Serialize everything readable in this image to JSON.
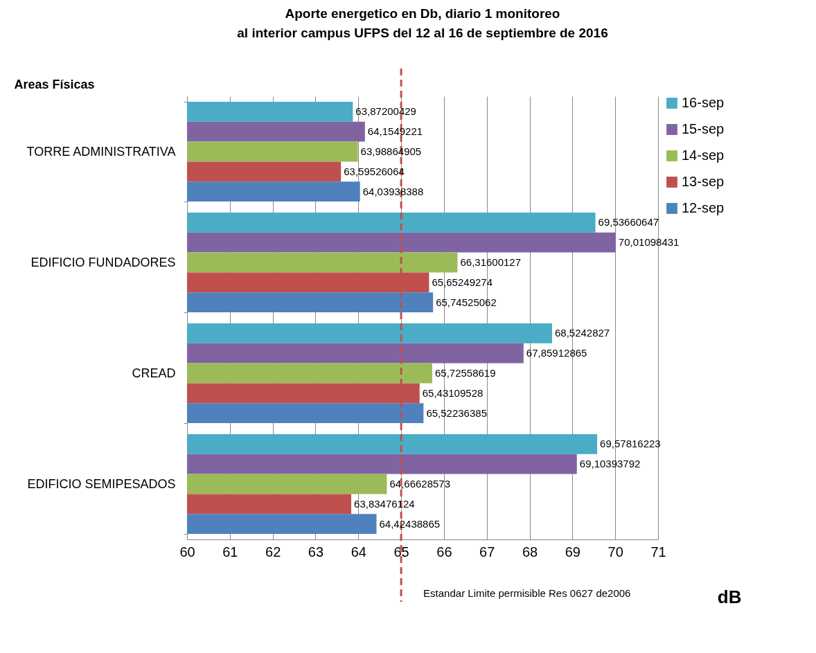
{
  "chart_data": {
    "type": "bar",
    "orientation": "horizontal",
    "title": [
      "Aporte energetico en Db,  diario 1 monitoreo",
      "al interior campus UFPS del 12 al 16 de septiembre de 2016"
    ],
    "ylabel": "Areas Físicas",
    "xlabel": "dB",
    "categories": [
      "TORRE ADMINISTRATIVA",
      "EDIFICIO  FUNDADORES",
      "CREAD",
      "EDIFICIO SEMIPESADOS"
    ],
    "series": [
      {
        "name": "16-sep",
        "color": "#4bacc6",
        "values": [
          63.87200429,
          69.53660647,
          68.5242827,
          69.57816223
        ],
        "value_labels": [
          "63,87200429",
          "69,53660647",
          "68,5242827",
          "69,57816223"
        ]
      },
      {
        "name": "15-sep",
        "color": "#8064a2",
        "values": [
          64.1549221,
          70.01098431,
          67.85912865,
          69.10393792
        ],
        "value_labels": [
          "64,1549221",
          "70,01098431",
          "67,85912865",
          "69,10393792"
        ]
      },
      {
        "name": "14-sep",
        "color": "#9bbb59",
        "values": [
          63.98864905,
          66.31600127,
          65.72558619,
          64.66628573
        ],
        "value_labels": [
          "63,98864905",
          "66,31600127",
          "65,72558619",
          "64,66628573"
        ]
      },
      {
        "name": "13-sep",
        "color": "#c0504d",
        "values": [
          63.59526064,
          65.65249274,
          65.43109528,
          63.83476124
        ],
        "value_labels": [
          "63,59526064",
          "65,65249274",
          "65,43109528",
          "63,83476124"
        ]
      },
      {
        "name": "12-sep",
        "color": "#4f81bd",
        "values": [
          64.03938388,
          65.74525062,
          65.52236385,
          64.42438865
        ],
        "value_labels": [
          "64,03938388",
          "65,74525062",
          "65,52236385",
          "64,42438865"
        ]
      }
    ],
    "xlim": [
      60,
      71
    ],
    "xticks": [
      60,
      61,
      62,
      63,
      64,
      65,
      66,
      67,
      68,
      69,
      70,
      71
    ],
    "grid": "x",
    "legend": "right",
    "ref_lines": [
      {
        "axis": "x",
        "value": 65,
        "label": "Estandar  Limite permisible    Res 0627 de2006",
        "color": "#c0504d",
        "line_style": "dashed"
      }
    ]
  }
}
